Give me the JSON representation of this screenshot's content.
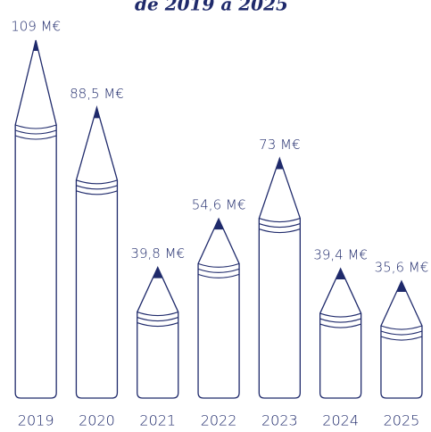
{
  "chart_data": {
    "type": "bar",
    "title": "de 2019 à 2025",
    "categories": [
      "2019",
      "2020",
      "2021",
      "2022",
      "2023",
      "2024",
      "2025"
    ],
    "values": [
      109,
      88.5,
      39.8,
      54.6,
      73,
      39.4,
      35.6
    ],
    "value_labels": [
      "109 M€",
      "88,5 M€",
      "39,8 M€",
      "54,6 M€",
      "73 M€",
      "39,4 M€",
      "35,6 M€"
    ],
    "color": "#1f2a6b"
  }
}
